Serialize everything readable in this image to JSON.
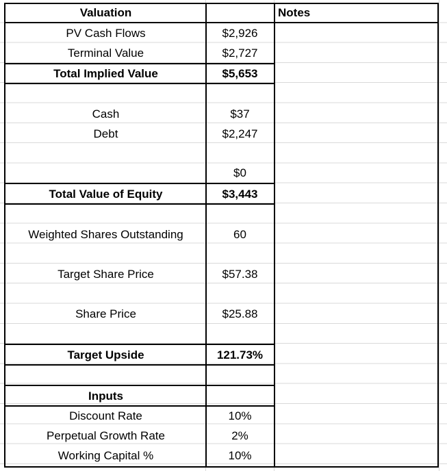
{
  "valuation": {
    "header": "Valuation",
    "notes_header": "Notes",
    "pv_cash_flows": {
      "label": "PV Cash Flows",
      "value": "$2,926"
    },
    "terminal_value": {
      "label": "Terminal Value",
      "value": "$2,727"
    },
    "total_implied_value": {
      "label": "Total Implied Value",
      "value": "$5,653"
    },
    "cash": {
      "label": "Cash",
      "value": "$37"
    },
    "debt": {
      "label": "Debt",
      "value": "$2,247"
    },
    "other": {
      "value": "$0"
    },
    "total_value_equity": {
      "label": "Total Value of Equity",
      "value": "$3,443"
    },
    "shares": {
      "label": "Weighted Shares Outstanding",
      "value": "60"
    },
    "target_price": {
      "label": "Target Share Price",
      "value": "$57.38"
    },
    "share_price": {
      "label": "Share Price",
      "value": "$25.88"
    },
    "target_upside": {
      "label": "Target Upside",
      "value": "121.73%"
    }
  },
  "inputs": {
    "header": "Inputs",
    "discount_rate": {
      "label": "Discount Rate",
      "value": "10%"
    },
    "perpetual_growth": {
      "label": "Perpetual Growth Rate",
      "value": "2%"
    },
    "working_capital": {
      "label": "Working Capital %",
      "value": "10%"
    }
  }
}
